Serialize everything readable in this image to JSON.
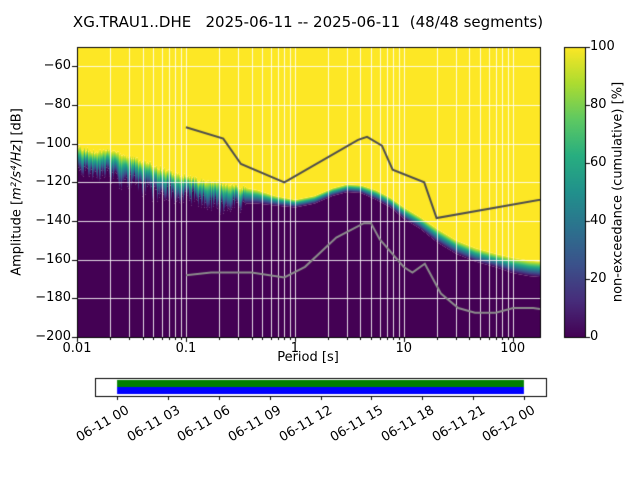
{
  "title": "XG.TRAU1..DHE   2025-06-11 -- 2025-06-11  (48/48 segments)",
  "station": "XG.TRAU1..DHE",
  "date_range": "2025-06-11 -- 2025-06-11",
  "segments": "48/48 segments",
  "axes": {
    "xlabel": "Period [s]",
    "ylabel_prefix": "Amplitude [",
    "ylabel_math": "m²/s⁴/Hz",
    "ylabel_suffix": "] [dB]",
    "x_ticks": [
      {
        "label": "0.01",
        "value": 0.01
      },
      {
        "label": "0.1",
        "value": 0.1
      },
      {
        "label": "1",
        "value": 1
      },
      {
        "label": "10",
        "value": 10
      },
      {
        "label": "100",
        "value": 100
      }
    ],
    "y_ticks": [
      {
        "label": "−60",
        "value": -60
      },
      {
        "label": "−80",
        "value": -80
      },
      {
        "label": "−100",
        "value": -100
      },
      {
        "label": "−120",
        "value": -120
      },
      {
        "label": "−140",
        "value": -140
      },
      {
        "label": "−160",
        "value": -160
      },
      {
        "label": "−180",
        "value": -180
      },
      {
        "label": "−200",
        "value": -200
      }
    ]
  },
  "colorbar": {
    "label": "non-exceedance (cumulative) [%]",
    "ticks": [
      {
        "label": "0",
        "value": 0
      },
      {
        "label": "20",
        "value": 20
      },
      {
        "label": "40",
        "value": 40
      },
      {
        "label": "60",
        "value": 60
      },
      {
        "label": "80",
        "value": 80
      },
      {
        "label": "100",
        "value": 100
      }
    ]
  },
  "timeline": {
    "labels": [
      "06-11 00",
      "06-11 03",
      "06-11 06",
      "06-11 09",
      "06-11 12",
      "06-11 15",
      "06-11 18",
      "06-11 21",
      "06-12 00"
    ],
    "coverage_start_frac": 0.049,
    "coverage_end_frac": 0.951
  },
  "chart_data": {
    "type": "heatmap",
    "title": "XG.TRAU1..DHE   2025-06-11 -- 2025-06-11  (48/48 segments)",
    "xlabel": "Period [s]",
    "ylabel": "Amplitude [m2/s4/Hz] [dB]",
    "x_scale": "log",
    "xlim": [
      0.01,
      178
    ],
    "ylim": [
      -200,
      -50
    ],
    "grid": true,
    "colorbar_label": "non-exceedance (cumulative) [%]",
    "colorbar_range": [
      0,
      100
    ],
    "colormap": "viridis",
    "colormap_stops": [
      "#440154",
      "#472d7b",
      "#3b528b",
      "#2c728e",
      "#21918c",
      "#28ae80",
      "#5ec962",
      "#addc30",
      "#fde725"
    ],
    "colors": {
      "high": "#fde725",
      "low": "#440154",
      "grid": "#ffffff",
      "nhnm": "#4d4d4d",
      "nlnm": "#8c8c8c",
      "timeline_green": "#007f00",
      "timeline_blue": "#0000ff",
      "spine": "#000000"
    },
    "cumulative_boundary": {
      "description": "top of the PPSD distribution (non-exceedance reaches 100% above this curve) and approximate width of the transition band in dB",
      "periods": [
        0.01,
        0.014,
        0.02,
        0.028,
        0.04,
        0.055,
        0.075,
        0.1,
        0.14,
        0.2,
        0.3,
        0.45,
        0.65,
        1.0,
        1.5,
        2.2,
        3.0,
        4.0,
        5.5,
        7.5,
        10,
        14,
        20,
        30,
        45,
        70,
        100,
        140,
        178
      ],
      "db_top": [
        -102,
        -104,
        -103,
        -106,
        -109,
        -112,
        -115,
        -117,
        -119,
        -120,
        -122,
        -124,
        -127,
        -129,
        -127,
        -123,
        -121,
        -121.5,
        -124,
        -128,
        -133,
        -138,
        -144,
        -150,
        -154,
        -157,
        -159,
        -160.5,
        -161
      ],
      "band_db": [
        11,
        12,
        12,
        13,
        14,
        13,
        11,
        10,
        11,
        12,
        9,
        7,
        5,
        4,
        4,
        4,
        4,
        4,
        5,
        5,
        6,
        6,
        7,
        7,
        7,
        7,
        8,
        8,
        8
      ]
    },
    "noise_models": {
      "nhnm": {
        "name": "Peterson NHNM",
        "periods": [
          0.1,
          0.22,
          0.32,
          0.8,
          3.8,
          4.6,
          6.3,
          7.9,
          15.4,
          20.0,
          354.8
        ],
        "db": [
          -91.5,
          -97.4,
          -110.5,
          -120.0,
          -98.0,
          -96.5,
          -101.0,
          -113.5,
          -120.0,
          -138.5,
          -126.0
        ]
      },
      "nlnm": {
        "name": "Peterson NLNM",
        "periods": [
          0.1,
          0.17,
          0.4,
          0.8,
          1.24,
          2.4,
          4.3,
          5.0,
          6.0,
          10.0,
          12.0,
          15.6,
          21.9,
          31.6,
          45.0,
          70.0,
          101.0,
          154.0,
          328.5
        ],
        "db": [
          -168.0,
          -166.7,
          -166.7,
          -169.2,
          -163.7,
          -148.6,
          -141.1,
          -141.1,
          -149.4,
          -163.8,
          -166.7,
          -162.1,
          -177.5,
          -185.0,
          -187.5,
          -187.5,
          -185.0,
          -185.0,
          -187.5
        ]
      }
    }
  }
}
